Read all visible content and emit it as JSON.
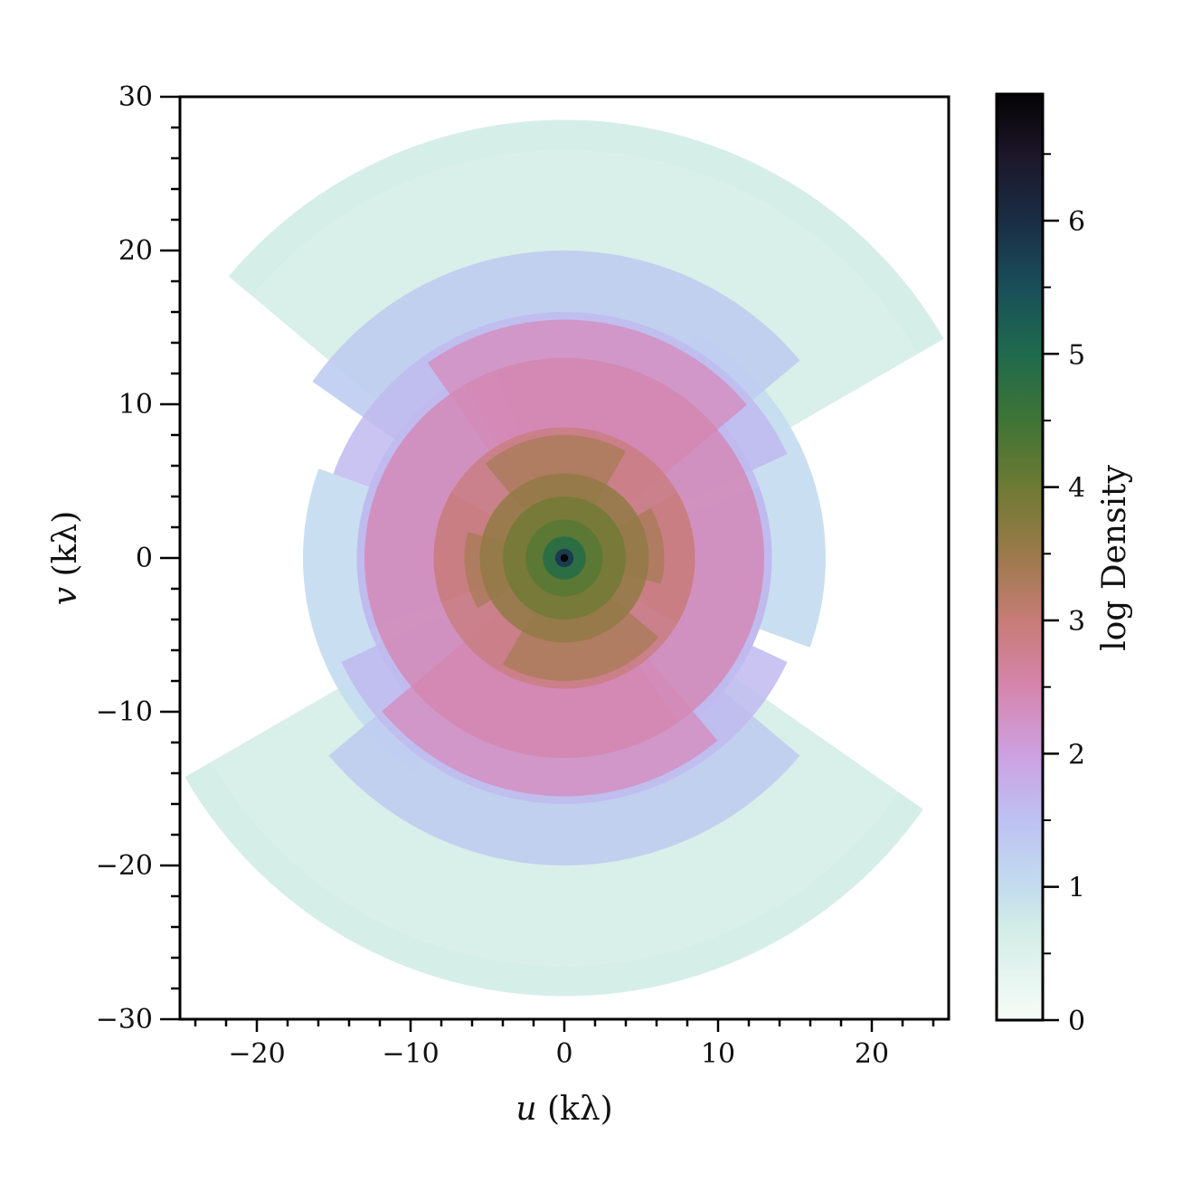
{
  "chart_data": {
    "type": "heatmap",
    "title": "",
    "xlabel": {
      "var": "u",
      "unit": "(kλ)"
    },
    "ylabel": {
      "var": "v",
      "unit": "(kλ)"
    },
    "xlim": [
      -25,
      25
    ],
    "ylim": [
      -30,
      30
    ],
    "xticks": [
      -20,
      -10,
      0,
      10,
      20
    ],
    "xtick_labels": [
      "−20",
      "−10",
      "0",
      "10",
      "20"
    ],
    "yticks": [
      -30,
      -20,
      -10,
      0,
      10,
      20,
      30
    ],
    "ytick_labels": [
      "−30",
      "−20",
      "−10",
      "0",
      "10",
      "20",
      "30"
    ],
    "grid": false,
    "colorbar": {
      "label": "log Density",
      "range": [
        0,
        6.95
      ],
      "ticks": [
        0,
        1,
        2,
        3,
        4,
        5,
        6
      ],
      "tick_labels": [
        "0",
        "1",
        "2",
        "3",
        "4",
        "5",
        "6"
      ],
      "colormap": "cubehelix_r",
      "stops": [
        {
          "value": 0.0,
          "color": "#f7fcf8"
        },
        {
          "value": 0.7,
          "color": "#d2ece6"
        },
        {
          "value": 1.0,
          "color": "#c3dcef"
        },
        {
          "value": 1.5,
          "color": "#bdc1f2"
        },
        {
          "value": 2.0,
          "color": "#cda0e0"
        },
        {
          "value": 2.5,
          "color": "#d585ad"
        },
        {
          "value": 3.0,
          "color": "#c67c76"
        },
        {
          "value": 3.5,
          "color": "#9b7a4a"
        },
        {
          "value": 4.0,
          "color": "#6e7a33"
        },
        {
          "value": 4.5,
          "color": "#3f7436"
        },
        {
          "value": 5.0,
          "color": "#1f6a4d"
        },
        {
          "value": 5.5,
          "color": "#1a4f5a"
        },
        {
          "value": 6.0,
          "color": "#1a2d45"
        },
        {
          "value": 6.5,
          "color": "#1c1628"
        },
        {
          "value": 6.95,
          "color": "#050305"
        }
      ]
    },
    "coverage_sectors": [
      {
        "r_in": 26.5,
        "r_out": 28.5,
        "a_from": 30,
        "a_to": 140,
        "log_density": 0.7
      },
      {
        "r_in": 26.5,
        "r_out": 28.5,
        "a_from": 210,
        "a_to": 325,
        "log_density": 0.7
      },
      {
        "r_in": 0,
        "r_out": 26.5,
        "a_from": 30,
        "a_to": 140,
        "log_density": 0.65
      },
      {
        "r_in": 0,
        "r_out": 26.5,
        "a_from": 210,
        "a_to": 325,
        "log_density": 0.65
      },
      {
        "r_in": 8,
        "r_out": 17,
        "a_from": -20,
        "a_to": 60,
        "log_density": 1.0
      },
      {
        "r_in": 8,
        "r_out": 17,
        "a_from": 160,
        "a_to": 235,
        "log_density": 1.0
      },
      {
        "r_in": 0,
        "r_out": 20,
        "a_from": 40,
        "a_to": 145,
        "log_density": 1.3
      },
      {
        "r_in": 0,
        "r_out": 20,
        "a_from": 220,
        "a_to": 320,
        "log_density": 1.3
      },
      {
        "r_in": 0,
        "r_out": 16,
        "a_from": 25,
        "a_to": 160,
        "log_density": 1.6
      },
      {
        "r_in": 0,
        "r_out": 16,
        "a_from": 205,
        "a_to": 335,
        "log_density": 1.6
      },
      {
        "r_in": 0,
        "r_out": 13.5,
        "a_from": -30,
        "a_to": 200,
        "log_density": 1.6
      },
      {
        "r_in": 0,
        "r_out": 13.5,
        "a_from": 150,
        "a_to": 380,
        "log_density": 1.6
      },
      {
        "r_in": 0,
        "r_out": 15.5,
        "a_from": 40,
        "a_to": 125,
        "log_density": 2.3
      },
      {
        "r_in": 0,
        "r_out": 15.5,
        "a_from": 220,
        "a_to": 310,
        "log_density": 2.3
      },
      {
        "r_in": 0,
        "r_out": 13,
        "a_from": 40,
        "a_to": 120,
        "log_density": 2.7
      },
      {
        "r_in": 0,
        "r_out": 13,
        "a_from": 220,
        "a_to": 305,
        "log_density": 2.7
      },
      {
        "r_in": 0,
        "r_out": 13,
        "a_from": 110,
        "a_to": 300,
        "log_density": 2.4
      },
      {
        "r_in": 0,
        "r_out": 13,
        "a_from": -60,
        "a_to": 120,
        "log_density": 2.4
      },
      {
        "r_in": 0,
        "r_out": 8.5,
        "a_from": -30,
        "a_to": 200,
        "log_density": 2.9
      },
      {
        "r_in": 0,
        "r_out": 8.5,
        "a_from": 150,
        "a_to": 390,
        "log_density": 2.9
      },
      {
        "r_in": 0,
        "r_out": 8,
        "a_from": 60,
        "a_to": 130,
        "log_density": 3.3
      },
      {
        "r_in": 0,
        "r_out": 8,
        "a_from": 240,
        "a_to": 320,
        "log_density": 3.3
      },
      {
        "r_in": 0,
        "r_out": 6.5,
        "a_from": -15,
        "a_to": 30,
        "log_density": 3.3
      },
      {
        "r_in": 0,
        "r_out": 6.5,
        "a_from": 165,
        "a_to": 210,
        "log_density": 3.3
      },
      {
        "r_in": 0,
        "r_out": 5.5,
        "a_from": 0,
        "a_to": 180,
        "log_density": 3.6
      },
      {
        "r_in": 0,
        "r_out": 5.5,
        "a_from": 180,
        "a_to": 360,
        "log_density": 3.6
      },
      {
        "r_in": 0,
        "r_out": 4,
        "a_from": 0,
        "a_to": 360,
        "log_density": 3.9
      },
      {
        "r_in": 0,
        "r_out": 2.5,
        "a_from": 0,
        "a_to": 360,
        "log_density": 4.2
      },
      {
        "r_in": 0,
        "r_out": 1.4,
        "a_from": 0,
        "a_to": 360,
        "log_density": 4.8
      },
      {
        "r_in": 0,
        "r_out": 0.6,
        "a_from": 0,
        "a_to": 360,
        "log_density": 5.8
      },
      {
        "r_in": 0,
        "r_out": 0.25,
        "a_from": 0,
        "a_to": 360,
        "log_density": 6.9
      }
    ]
  }
}
